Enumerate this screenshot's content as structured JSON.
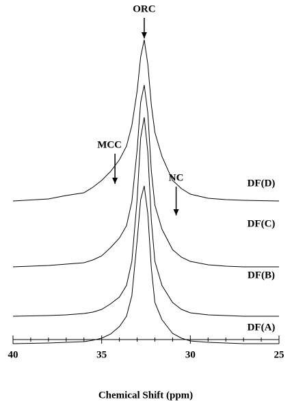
{
  "chart_data": {
    "type": "line",
    "x_label": "Chemical Shift (ppm)",
    "x": [
      40,
      38,
      37,
      36,
      35.5,
      35,
      34.5,
      34,
      33.6,
      33.3,
      33,
      32.8,
      32.6,
      32.4,
      32.2,
      32,
      31.6,
      31,
      30.5,
      30,
      29,
      28,
      27,
      25
    ],
    "series": [
      {
        "name": "DF(D)",
        "color": "#000000",
        "values": [
          0,
          3,
          8,
          12,
          20,
          30,
          43,
          60,
          80,
          110,
          160,
          210,
          235,
          200,
          140,
          100,
          65,
          30,
          18,
          10,
          4,
          2,
          1,
          0
        ]
      },
      {
        "name": "DF(C)",
        "color": "#000000",
        "values": [
          0,
          2,
          4,
          6,
          10,
          16,
          28,
          42,
          60,
          95,
          170,
          240,
          265,
          225,
          140,
          90,
          55,
          25,
          14,
          8,
          3,
          1,
          0,
          0
        ]
      },
      {
        "name": "DF(B)",
        "color": "#000000",
        "values": [
          0,
          1,
          2,
          4,
          6,
          10,
          18,
          28,
          45,
          80,
          170,
          260,
          290,
          240,
          140,
          80,
          45,
          20,
          10,
          5,
          2,
          1,
          0,
          0
        ]
      },
      {
        "name": "DF(A)",
        "color": "#000000",
        "values": [
          0,
          1,
          2,
          3,
          5,
          8,
          14,
          25,
          40,
          70,
          150,
          210,
          230,
          190,
          110,
          60,
          35,
          15,
          8,
          4,
          2,
          1,
          0,
          0
        ]
      }
    ],
    "xlim": [
      40,
      25
    ],
    "xticks": [
      40,
      35,
      30,
      25
    ],
    "xminorticks": [
      39,
      38,
      37,
      36,
      34,
      33,
      32,
      31,
      29,
      28,
      27,
      26
    ],
    "annotations": [
      {
        "text": "ORC",
        "x": 32.6
      },
      {
        "text": "MCC",
        "x": 34.25
      },
      {
        "text": "NC",
        "x": 30.8
      }
    ]
  }
}
